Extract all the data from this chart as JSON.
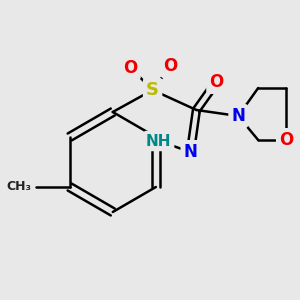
{
  "background": "#e8e8e8",
  "bond_lw": 1.8,
  "figsize": [
    3.0,
    3.0
  ],
  "dpi": 100,
  "colors": {
    "C": "#000000",
    "N": "#0000ee",
    "O": "#ee0000",
    "S": "#bbbb00",
    "NH": "#008888",
    "bond": "#000000",
    "CH3": "#222222"
  }
}
